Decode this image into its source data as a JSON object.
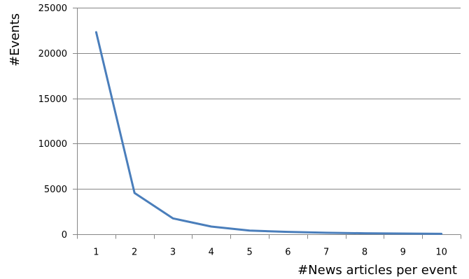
{
  "chart_data": {
    "type": "line",
    "title": "",
    "xlabel": "#News articles per event",
    "ylabel": "#Events",
    "x": [
      1,
      2,
      3,
      4,
      5,
      6,
      7,
      8,
      9,
      10
    ],
    "series": [
      {
        "values": [
          22300,
          4550,
          1750,
          850,
          400,
          260,
          160,
          110,
          80,
          50
        ]
      }
    ],
    "xlim": [
      0.5,
      10.5
    ],
    "ylim": [
      0,
      25000
    ],
    "yticks": [
      0,
      5000,
      10000,
      15000,
      20000,
      25000
    ],
    "xticks": [
      1,
      2,
      3,
      4,
      5,
      6,
      7,
      8,
      9,
      10
    ],
    "grid": "horizontal",
    "legend": "none",
    "colors": {
      "line": "#4a7ebb",
      "grid": "#868686",
      "axis": "#868686"
    }
  }
}
